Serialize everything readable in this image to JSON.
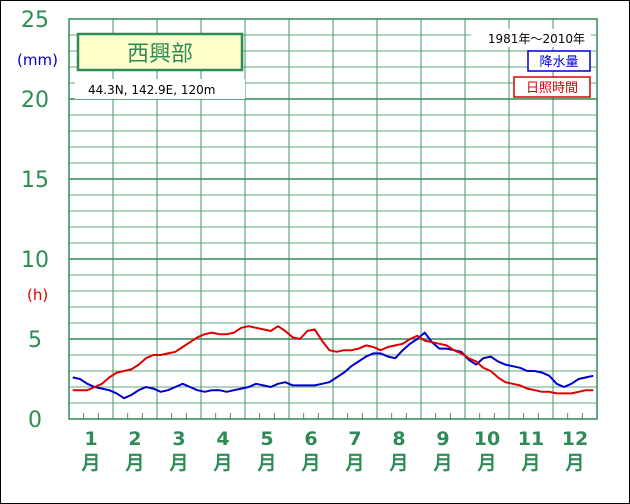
{
  "chart_data": {
    "type": "line",
    "title": "西興部",
    "location": "44.3N,  142.9E,  120m",
    "period": "1981年〜2010年",
    "y_unit_precip": "(mm)",
    "y_unit_sun": "(h)",
    "ylim": [
      0,
      25
    ],
    "yticks": [
      "0",
      "5",
      "10",
      "15",
      "20",
      "25"
    ],
    "categories": [
      "1",
      "2",
      "3",
      "4",
      "5",
      "6",
      "7",
      "8",
      "9",
      "10",
      "11",
      "12"
    ],
    "month_suffix": "月",
    "legend_position": "top-right",
    "grid": true,
    "colors": {
      "precip": "#0000cc",
      "sun": "#dd0000",
      "grid": "#2e8b57",
      "title_bg": "#ffffcc"
    },
    "series": [
      {
        "name": "降水量",
        "key": "precip",
        "x": [
          1,
          2,
          3,
          4,
          5,
          6,
          7,
          8,
          9,
          10,
          11,
          12,
          13,
          14,
          15,
          16,
          17,
          18,
          19,
          20,
          21,
          22,
          23,
          24,
          25,
          26,
          27,
          28,
          29,
          30,
          31,
          32,
          33,
          34,
          35,
          36,
          37,
          38,
          39,
          40,
          41,
          42,
          43,
          44,
          45,
          46,
          47,
          48,
          49,
          50,
          51,
          52,
          53,
          54,
          55,
          56,
          57,
          58,
          59,
          60,
          61,
          62,
          63,
          64,
          65,
          66,
          67,
          68,
          69,
          70,
          71,
          72
        ],
        "values": [
          2.6,
          2.5,
          2.2,
          2.0,
          1.9,
          1.8,
          1.6,
          1.3,
          1.5,
          1.8,
          2.0,
          1.9,
          1.7,
          1.8,
          2.0,
          2.2,
          2.0,
          1.8,
          1.7,
          1.8,
          1.8,
          1.7,
          1.8,
          1.9,
          2.0,
          2.2,
          2.1,
          2.0,
          2.2,
          2.3,
          2.1,
          2.1,
          2.1,
          2.1,
          2.2,
          2.3,
          2.6,
          2.9,
          3.3,
          3.6,
          3.9,
          4.1,
          4.1,
          3.9,
          3.8,
          4.3,
          4.7,
          5.0,
          5.4,
          4.8,
          4.4,
          4.4,
          4.3,
          4.2,
          3.7,
          3.4,
          3.8,
          3.9,
          3.6,
          3.4,
          3.3,
          3.2,
          3.0,
          3.0,
          2.9,
          2.7,
          2.2,
          2.0,
          2.2,
          2.5,
          2.6,
          2.7
        ]
      },
      {
        "name": "日照時間",
        "key": "sun",
        "x": [
          1,
          2,
          3,
          4,
          5,
          6,
          7,
          8,
          9,
          10,
          11,
          12,
          13,
          14,
          15,
          16,
          17,
          18,
          19,
          20,
          21,
          22,
          23,
          24,
          25,
          26,
          27,
          28,
          29,
          30,
          31,
          32,
          33,
          34,
          35,
          36,
          37,
          38,
          39,
          40,
          41,
          42,
          43,
          44,
          45,
          46,
          47,
          48,
          49,
          50,
          51,
          52,
          53,
          54,
          55,
          56,
          57,
          58,
          59,
          60,
          61,
          62,
          63,
          64,
          65,
          66,
          67,
          68,
          69,
          70,
          71,
          72
        ],
        "values": [
          1.8,
          1.8,
          1.8,
          2.0,
          2.2,
          2.6,
          2.9,
          3.0,
          3.1,
          3.4,
          3.8,
          4.0,
          4.0,
          4.1,
          4.2,
          4.5,
          4.8,
          5.1,
          5.3,
          5.4,
          5.3,
          5.3,
          5.4,
          5.7,
          5.8,
          5.7,
          5.6,
          5.5,
          5.8,
          5.5,
          5.1,
          5.0,
          5.5,
          5.6,
          4.9,
          4.3,
          4.2,
          4.3,
          4.3,
          4.4,
          4.6,
          4.5,
          4.3,
          4.5,
          4.6,
          4.7,
          5.0,
          5.2,
          4.9,
          4.8,
          4.7,
          4.6,
          4.3,
          4.1,
          3.8,
          3.6,
          3.2,
          3.0,
          2.6,
          2.3,
          2.2,
          2.1,
          1.9,
          1.8,
          1.7,
          1.7,
          1.6,
          1.6,
          1.6,
          1.7,
          1.8,
          1.8
        ]
      }
    ]
  }
}
